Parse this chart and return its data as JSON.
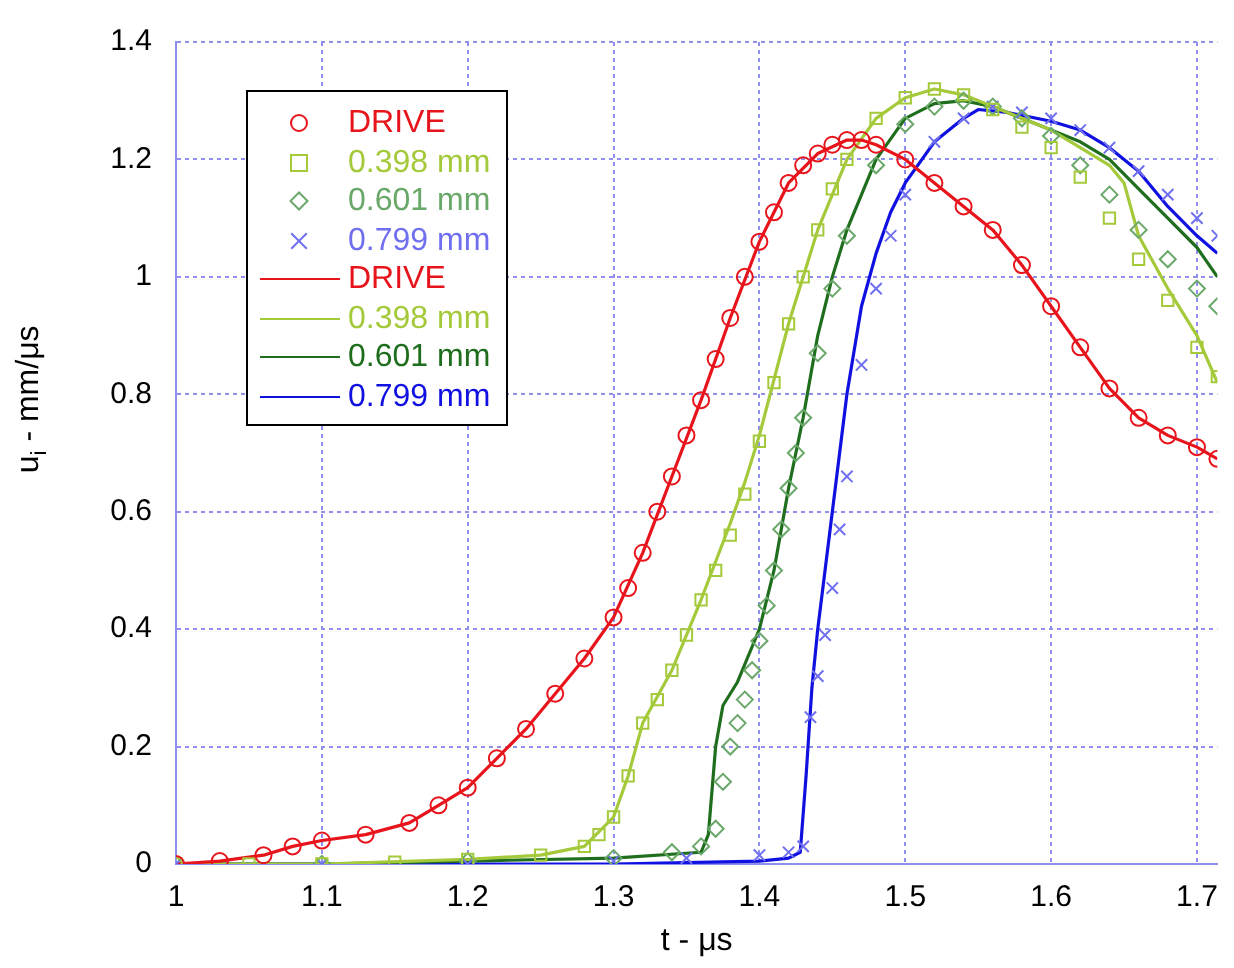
{
  "chart_data": {
    "type": "line",
    "xlabel": "t - μs",
    "ylabel": "u$_{i}$ - mm/μs",
    "xlim": [
      1,
      1.714
    ],
    "xticks": [
      1,
      1.1,
      1.2,
      1.3,
      1.4,
      1.5,
      1.6,
      1.7
    ],
    "ylim": [
      0,
      1.4
    ],
    "yticks": [
      0,
      0.2,
      0.4,
      0.6,
      0.8,
      1,
      1.2,
      1.4
    ],
    "grid": true,
    "legend": "top left",
    "series": [
      {
        "name": "DRIVE",
        "type": "scatter",
        "marker": "circle",
        "color": "#e8141c",
        "x": [
          1,
          1.03,
          1.06,
          1.08,
          1.1,
          1.13,
          1.16,
          1.18,
          1.2,
          1.22,
          1.24,
          1.26,
          1.28,
          1.3,
          1.31,
          1.32,
          1.33,
          1.34,
          1.35,
          1.36,
          1.37,
          1.38,
          1.39,
          1.4,
          1.41,
          1.42,
          1.43,
          1.44,
          1.45,
          1.46,
          1.47,
          1.48,
          1.5,
          1.52,
          1.54,
          1.56,
          1.58,
          1.6,
          1.62,
          1.64,
          1.66,
          1.68,
          1.7,
          1.714
        ],
        "values": [
          0,
          0.005,
          0.015,
          0.03,
          0.04,
          0.05,
          0.07,
          0.1,
          0.13,
          0.18,
          0.23,
          0.29,
          0.35,
          0.42,
          0.47,
          0.53,
          0.6,
          0.66,
          0.73,
          0.79,
          0.86,
          0.93,
          1.0,
          1.06,
          1.11,
          1.16,
          1.19,
          1.21,
          1.225,
          1.233,
          1.233,
          1.225,
          1.2,
          1.16,
          1.12,
          1.08,
          1.02,
          0.95,
          0.88,
          0.81,
          0.76,
          0.73,
          0.71,
          0.69
        ]
      },
      {
        "name": "0.398 mm",
        "type": "scatter",
        "marker": "square",
        "color": "#a4c93a",
        "x": [
          1,
          1.05,
          1.1,
          1.15,
          1.2,
          1.25,
          1.28,
          1.29,
          1.3,
          1.31,
          1.32,
          1.33,
          1.34,
          1.35,
          1.36,
          1.37,
          1.38,
          1.39,
          1.4,
          1.41,
          1.42,
          1.43,
          1.44,
          1.45,
          1.46,
          1.48,
          1.5,
          1.52,
          1.54,
          1.56,
          1.58,
          1.6,
          1.62,
          1.64,
          1.66,
          1.68,
          1.7,
          1.714
        ],
        "values": [
          0,
          0,
          0,
          0.003,
          0.008,
          0.015,
          0.03,
          0.05,
          0.08,
          0.15,
          0.24,
          0.28,
          0.33,
          0.39,
          0.45,
          0.5,
          0.56,
          0.63,
          0.72,
          0.82,
          0.92,
          1.0,
          1.08,
          1.15,
          1.2,
          1.27,
          1.305,
          1.32,
          1.31,
          1.285,
          1.255,
          1.22,
          1.17,
          1.1,
          1.03,
          0.96,
          0.88,
          0.83
        ]
      },
      {
        "name": "0.601 mm",
        "type": "scatter",
        "marker": "diamond",
        "color": "#6aa86a",
        "x": [
          1,
          1.1,
          1.2,
          1.3,
          1.34,
          1.36,
          1.37,
          1.375,
          1.38,
          1.385,
          1.39,
          1.395,
          1.4,
          1.405,
          1.41,
          1.415,
          1.42,
          1.425,
          1.43,
          1.44,
          1.45,
          1.46,
          1.48,
          1.5,
          1.52,
          1.54,
          1.56,
          1.58,
          1.6,
          1.62,
          1.64,
          1.66,
          1.68,
          1.7,
          1.714
        ],
        "values": [
          0,
          0,
          0.005,
          0.01,
          0.02,
          0.03,
          0.06,
          0.14,
          0.2,
          0.24,
          0.28,
          0.33,
          0.38,
          0.44,
          0.5,
          0.57,
          0.64,
          0.7,
          0.76,
          0.87,
          0.98,
          1.07,
          1.19,
          1.26,
          1.29,
          1.3,
          1.29,
          1.27,
          1.24,
          1.19,
          1.14,
          1.08,
          1.03,
          0.98,
          0.95
        ]
      },
      {
        "name": "0.799 mm",
        "type": "scatter",
        "marker": "cross",
        "color": "#6f6ff0",
        "x": [
          1,
          1.1,
          1.2,
          1.3,
          1.35,
          1.4,
          1.42,
          1.43,
          1.435,
          1.44,
          1.445,
          1.45,
          1.455,
          1.46,
          1.47,
          1.48,
          1.49,
          1.5,
          1.52,
          1.54,
          1.56,
          1.58,
          1.6,
          1.62,
          1.64,
          1.66,
          1.68,
          1.7,
          1.714
        ],
        "values": [
          0,
          0,
          0,
          0.005,
          0.01,
          0.015,
          0.02,
          0.03,
          0.25,
          0.32,
          0.39,
          0.47,
          0.57,
          0.66,
          0.85,
          0.98,
          1.07,
          1.14,
          1.23,
          1.27,
          1.29,
          1.28,
          1.27,
          1.25,
          1.22,
          1.18,
          1.14,
          1.1,
          1.07
        ]
      },
      {
        "name": "DRIVE",
        "type": "line",
        "marker": "none",
        "color": "#e8141c",
        "x": [
          1,
          1.03,
          1.06,
          1.08,
          1.1,
          1.13,
          1.16,
          1.18,
          1.2,
          1.22,
          1.24,
          1.26,
          1.28,
          1.3,
          1.32,
          1.34,
          1.36,
          1.38,
          1.4,
          1.42,
          1.44,
          1.46,
          1.47,
          1.48,
          1.5,
          1.52,
          1.54,
          1.56,
          1.58,
          1.6,
          1.62,
          1.64,
          1.66,
          1.68,
          1.7,
          1.714
        ],
        "values": [
          0,
          0.005,
          0.015,
          0.03,
          0.04,
          0.05,
          0.07,
          0.1,
          0.13,
          0.18,
          0.23,
          0.29,
          0.35,
          0.42,
          0.53,
          0.66,
          0.79,
          0.93,
          1.06,
          1.16,
          1.21,
          1.233,
          1.233,
          1.225,
          1.2,
          1.16,
          1.12,
          1.08,
          1.02,
          0.95,
          0.88,
          0.81,
          0.76,
          0.73,
          0.71,
          0.69
        ]
      },
      {
        "name": "0.398 mm",
        "type": "line",
        "marker": "none",
        "color": "#a4c93a",
        "x": [
          1,
          1.1,
          1.2,
          1.25,
          1.28,
          1.3,
          1.31,
          1.32,
          1.34,
          1.36,
          1.38,
          1.39,
          1.4,
          1.42,
          1.44,
          1.46,
          1.48,
          1.5,
          1.52,
          1.54,
          1.56,
          1.58,
          1.6,
          1.62,
          1.64,
          1.65,
          1.66,
          1.68,
          1.7,
          1.714
        ],
        "values": [
          0,
          0,
          0.008,
          0.015,
          0.03,
          0.08,
          0.15,
          0.24,
          0.33,
          0.45,
          0.58,
          0.65,
          0.73,
          0.92,
          1.08,
          1.2,
          1.27,
          1.305,
          1.32,
          1.31,
          1.29,
          1.27,
          1.25,
          1.22,
          1.19,
          1.16,
          1.07,
          0.98,
          0.9,
          0.82
        ]
      },
      {
        "name": "0.601 mm",
        "type": "line",
        "marker": "none",
        "color": "#1e6e1e",
        "x": [
          1,
          1.1,
          1.2,
          1.3,
          1.36,
          1.365,
          1.37,
          1.375,
          1.385,
          1.395,
          1.4,
          1.41,
          1.42,
          1.43,
          1.44,
          1.45,
          1.46,
          1.48,
          1.5,
          1.52,
          1.54,
          1.56,
          1.58,
          1.6,
          1.62,
          1.64,
          1.66,
          1.68,
          1.7,
          1.714
        ],
        "values": [
          0,
          0,
          0.005,
          0.01,
          0.02,
          0.05,
          0.2,
          0.27,
          0.31,
          0.37,
          0.4,
          0.5,
          0.64,
          0.76,
          0.9,
          1.0,
          1.08,
          1.2,
          1.27,
          1.295,
          1.3,
          1.29,
          1.27,
          1.25,
          1.23,
          1.2,
          1.15,
          1.1,
          1.05,
          1.0
        ]
      },
      {
        "name": "0.799 mm",
        "type": "line",
        "marker": "none",
        "color": "#1010e0",
        "x": [
          1,
          1.1,
          1.2,
          1.3,
          1.4,
          1.42,
          1.428,
          1.432,
          1.436,
          1.44,
          1.445,
          1.45,
          1.455,
          1.46,
          1.47,
          1.48,
          1.49,
          1.5,
          1.52,
          1.54,
          1.55,
          1.57,
          1.6,
          1.62,
          1.64,
          1.66,
          1.68,
          1.7,
          1.714
        ],
        "values": [
          0,
          0,
          0,
          0,
          0.005,
          0.01,
          0.02,
          0.15,
          0.3,
          0.4,
          0.5,
          0.6,
          0.7,
          0.8,
          0.95,
          1.04,
          1.11,
          1.16,
          1.23,
          1.27,
          1.285,
          1.28,
          1.265,
          1.25,
          1.22,
          1.18,
          1.12,
          1.07,
          1.04
        ]
      }
    ]
  }
}
